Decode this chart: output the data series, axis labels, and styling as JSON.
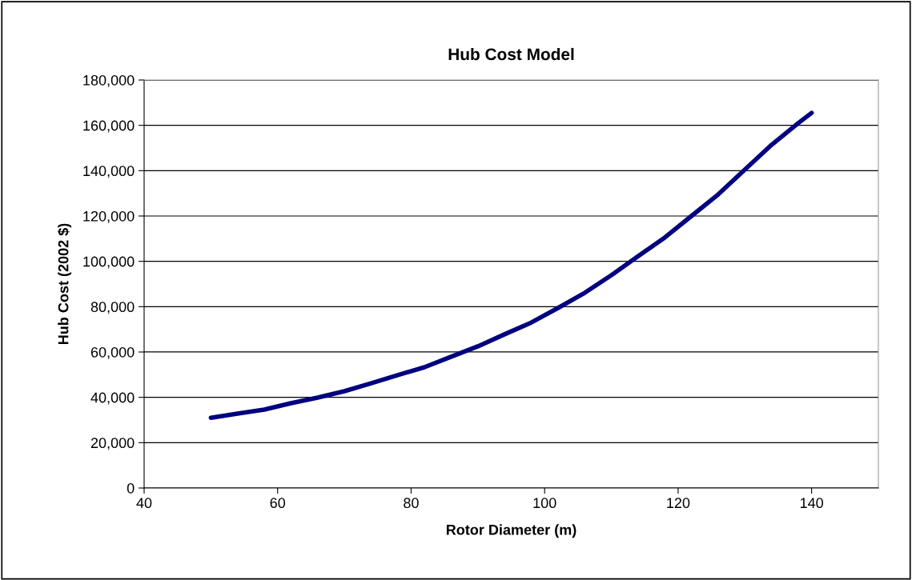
{
  "chart_data": {
    "type": "line",
    "title": "Hub Cost Model",
    "xlabel": "Rotor Diameter (m)",
    "ylabel": "Hub Cost (2002 $)",
    "series": [
      {
        "color": "#000080",
        "x": [
          50,
          54,
          58,
          62,
          66,
          70,
          74,
          78,
          82,
          86,
          90,
          94,
          98,
          102,
          106,
          110,
          114,
          118,
          122,
          126,
          130,
          134,
          138,
          140
        ],
        "values": [
          31000,
          32800,
          34600,
          37400,
          39900,
          42700,
          46200,
          49800,
          53300,
          57900,
          62500,
          67800,
          73000,
          79400,
          86100,
          93900,
          102300,
          110500,
          120000,
          129500,
          140500,
          151400,
          161000,
          165500
        ]
      }
    ],
    "xlim": [
      40,
      150
    ],
    "xticks": [
      40,
      60,
      80,
      100,
      120,
      140
    ],
    "ylim": [
      0,
      180000
    ],
    "yticks": [
      {
        "value": 0,
        "label": "0"
      },
      {
        "value": 20000,
        "label": "20,000"
      },
      {
        "value": 40000,
        "label": "40,000"
      },
      {
        "value": 60000,
        "label": "60,000"
      },
      {
        "value": 80000,
        "label": "80,000"
      },
      {
        "value": 100000,
        "label": "100,000"
      },
      {
        "value": 120000,
        "label": "120,000"
      },
      {
        "value": 140000,
        "label": "140,000"
      },
      {
        "value": 160000,
        "label": "160,000"
      },
      {
        "value": 180000,
        "label": "180,000"
      }
    ],
    "grid": "y",
    "legend": false,
    "marker": "none",
    "line_style": "solid"
  }
}
